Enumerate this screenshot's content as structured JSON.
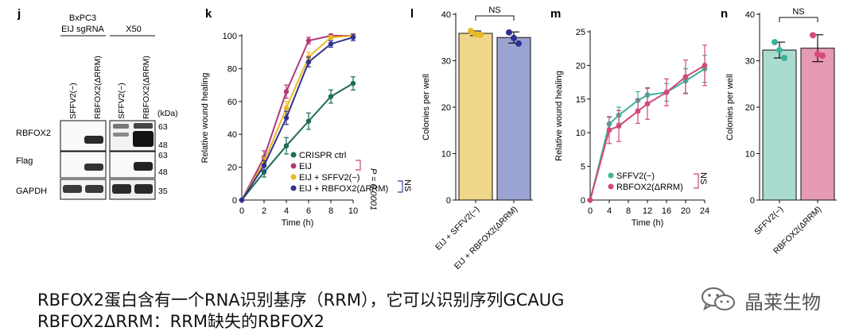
{
  "panels": {
    "j": {
      "letter": "j",
      "cell_line": "BxPC3",
      "treatment": "EIJ sgRNA",
      "exposure": "X50",
      "lanes": [
        "SFFV2(−)",
        "RBFOX2(ΔRRM)",
        "SFFV2(−)",
        "RBFOX2(ΔRRM)"
      ],
      "unit": "(kDa)",
      "blots": [
        {
          "label": "RBFOX2",
          "markers": [
            "63",
            "48"
          ]
        },
        {
          "label": "Flag",
          "markers": [
            "63",
            "48"
          ]
        },
        {
          "label": "GAPDH",
          "markers": [
            "35"
          ]
        }
      ]
    },
    "k": {
      "letter": "k"
    },
    "l": {
      "letter": "l"
    },
    "m": {
      "letter": "m"
    },
    "n": {
      "letter": "n"
    }
  },
  "colors": {
    "teal_dark": "#1e6b57",
    "magenta": "#b03a78",
    "gold": "#e8b923",
    "navy": "#2e3192",
    "bar_gold": "#f0d688",
    "bar_lavender": "#9aa3d2",
    "teal_light": "#3bb39b",
    "pink": "#d24a79",
    "bar_mint": "#a9dccf",
    "bar_pink": "#e79ab3",
    "bracket_pink": "#c2457f",
    "bracket_blue": "#3b3fa6"
  },
  "chart_data": [
    {
      "panel": "k",
      "type": "line",
      "xlabel": "Time (h)",
      "ylabel": "Relative wound healing",
      "xlim": [
        0,
        10
      ],
      "ylim": [
        0,
        100
      ],
      "xticks": [
        0,
        2,
        4,
        6,
        8,
        10
      ],
      "yticks": [
        0,
        20,
        40,
        60,
        80,
        100
      ],
      "legend_position": "bottom-right",
      "x": [
        0,
        2,
        4,
        6,
        8,
        10
      ],
      "series": [
        {
          "name": "CRISPR ctrl",
          "color": "#1e6b57",
          "values": [
            0,
            17,
            33,
            48,
            63,
            71
          ],
          "err": [
            0,
            3,
            5,
            5,
            4,
            4
          ]
        },
        {
          "name": "EIJ",
          "color": "#b03a78",
          "values": [
            0,
            26,
            66,
            97,
            100,
            100
          ],
          "err": [
            0,
            4,
            4,
            2,
            1,
            1
          ]
        },
        {
          "name": "EIJ + SFFV2(−)",
          "color": "#e8b923",
          "values": [
            0,
            23,
            56,
            87,
            99,
            100
          ],
          "err": [
            0,
            3,
            4,
            3,
            1,
            1
          ]
        },
        {
          "name": "EIJ + RBFOX2(ΔRRM)",
          "color": "#2e3192",
          "values": [
            0,
            21,
            50,
            84,
            95,
            99
          ],
          "err": [
            0,
            3,
            4,
            3,
            2,
            2
          ]
        }
      ],
      "annotations": [
        {
          "text": "P = 0.0001"
        },
        {
          "text": "NS"
        }
      ]
    },
    {
      "panel": "l",
      "type": "bar",
      "ylabel": "Colonies per well",
      "ylim": [
        0,
        40
      ],
      "yticks": [
        0,
        10,
        20,
        30,
        40
      ],
      "categories": [
        "EIJ + SFFV2(−)",
        "EIJ + RBFOX2(ΔRRM)"
      ],
      "values": [
        35.9,
        35.0
      ],
      "err": [
        0.5,
        1.2
      ],
      "bar_colors": [
        "#f0d688",
        "#9aa3d2"
      ],
      "point_colors": [
        "#e8b923",
        "#2e3192"
      ],
      "points": [
        [
          36.4,
          35.7,
          35.6
        ],
        [
          36.1,
          34.9,
          33.7
        ]
      ],
      "annotation": "NS"
    },
    {
      "panel": "m",
      "type": "line",
      "xlabel": "Time (h)",
      "ylabel": "Relative wound healing",
      "xlim": [
        0,
        24
      ],
      "ylim": [
        0,
        25
      ],
      "xticks": [
        0,
        4,
        8,
        12,
        16,
        20,
        24
      ],
      "yticks": [
        0,
        5,
        10,
        15,
        20,
        25
      ],
      "legend_position": "bottom-right",
      "annotation": "NS",
      "series": [
        {
          "name": "SFFV2(−)",
          "color": "#3bb39b",
          "x": [
            0,
            4,
            6,
            10,
            12,
            16,
            20,
            24
          ],
          "values": [
            0,
            11.3,
            12.6,
            14.8,
            15.6,
            16.0,
            17.7,
            19.5
          ],
          "err": [
            0,
            1.0,
            1.2,
            1.3,
            1.1,
            1.3,
            1.8,
            2.0
          ]
        },
        {
          "name": "RBFOX2(ΔRRM)",
          "color": "#d24a79",
          "x": [
            0,
            4,
            6,
            10,
            12,
            16,
            20,
            24
          ],
          "values": [
            0,
            10.4,
            11.0,
            13.2,
            14.3,
            16.0,
            18.3,
            20.0
          ],
          "err": [
            0,
            2.0,
            2.3,
            1.8,
            2.3,
            2.0,
            2.5,
            3.0
          ]
        }
      ]
    },
    {
      "panel": "n",
      "type": "bar",
      "ylabel": "Colonies per well",
      "ylim": [
        0,
        40
      ],
      "yticks": [
        0,
        10,
        20,
        30,
        40
      ],
      "categories": [
        "SFFV2(−)",
        "RBFOX2(ΔRRM)"
      ],
      "values": [
        32.3,
        32.7
      ],
      "err": [
        1.7,
        2.9
      ],
      "bar_colors": [
        "#a9dccf",
        "#e79ab3"
      ],
      "point_colors": [
        "#3bb39b",
        "#d24a79"
      ],
      "points": [
        [
          34.0,
          32.3,
          30.6
        ],
        [
          35.5,
          31.4,
          31.1
        ]
      ],
      "annotation": "NS"
    }
  ],
  "caption": {
    "line1": "RBFOX2蛋白含有一个RNA识别基序（RRM），它可以识别序列GCAUG",
    "line2": "RBFOX2ΔRRM：RRM缺失的RBFOX2"
  },
  "watermark": {
    "text": "晶莱生物",
    "icon": "wechat-icon"
  }
}
